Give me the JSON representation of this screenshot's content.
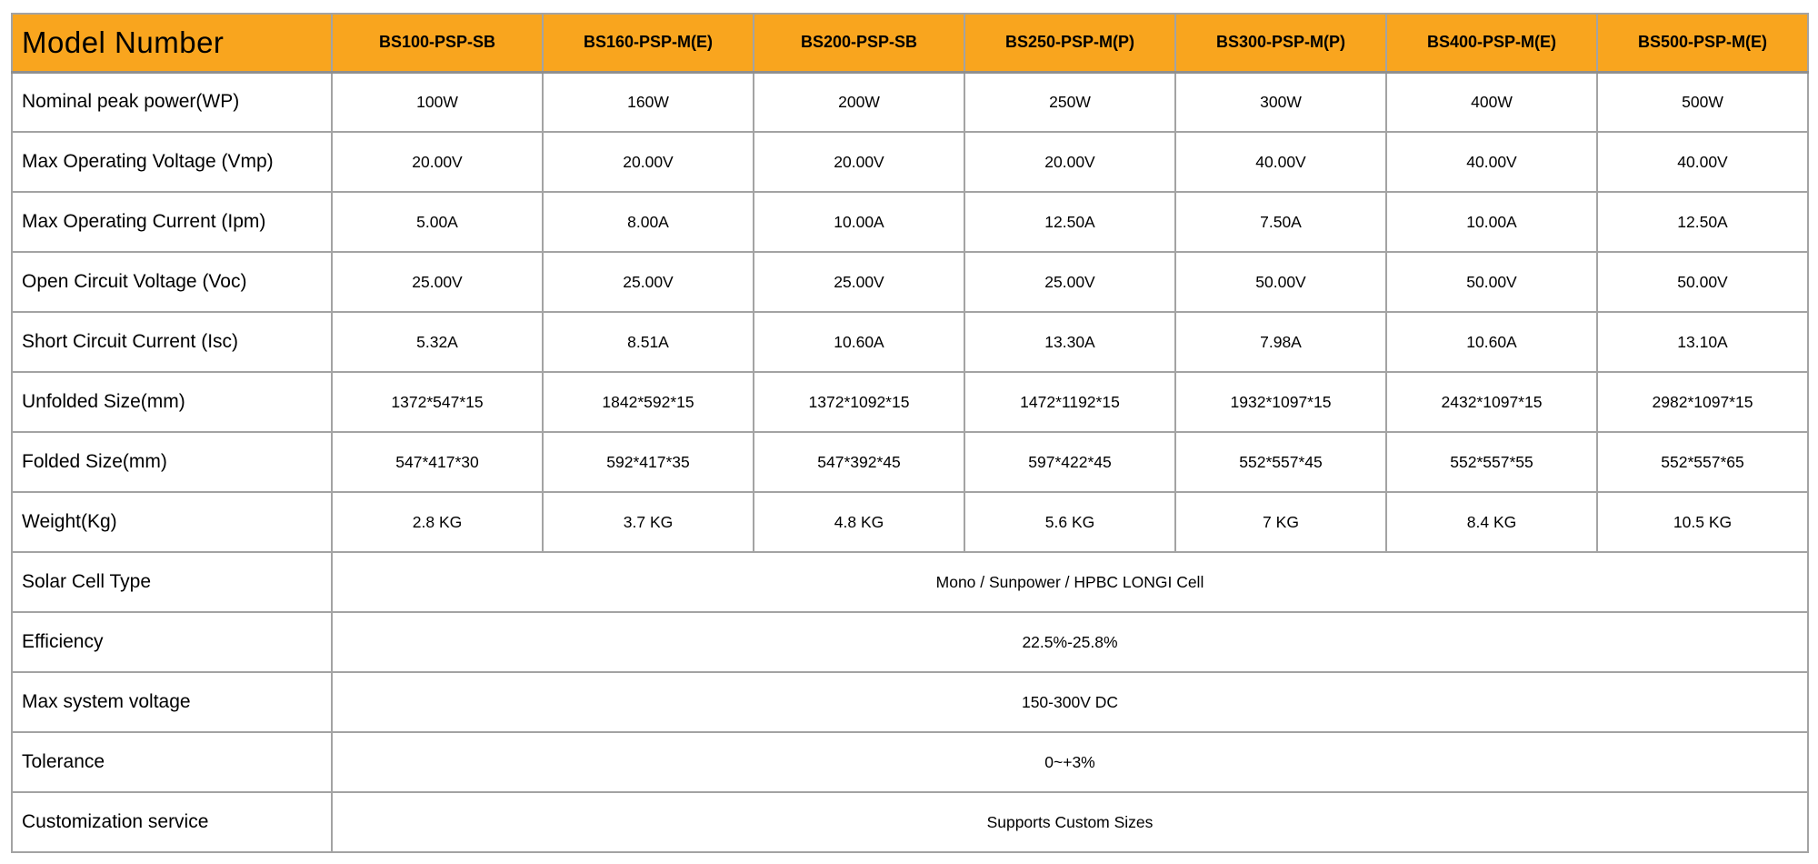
{
  "header": {
    "label": "Model Number",
    "models": [
      "BS100-PSP-SB",
      "BS160-PSP-M(E)",
      "BS200-PSP-SB",
      "BS250-PSP-M(P)",
      "BS300-PSP-M(P)",
      "BS400-PSP-M(E)",
      "BS500-PSP-M(E)"
    ]
  },
  "spec_rows": [
    {
      "label": "Nominal peak power(WP)",
      "values": [
        "100W",
        "160W",
        "200W",
        "250W",
        "300W",
        "400W",
        "500W"
      ]
    },
    {
      "label": "Max Operating Voltage (Vmp)",
      "values": [
        "20.00V",
        "20.00V",
        "20.00V",
        "20.00V",
        "40.00V",
        "40.00V",
        "40.00V"
      ]
    },
    {
      "label": "Max Operating Current (Ipm)",
      "values": [
        "5.00A",
        "8.00A",
        "10.00A",
        "12.50A",
        "7.50A",
        "10.00A",
        "12.50A"
      ]
    },
    {
      "label": "Open Circuit Voltage (Voc)",
      "values": [
        "25.00V",
        "25.00V",
        "25.00V",
        "25.00V",
        "50.00V",
        "50.00V",
        "50.00V"
      ]
    },
    {
      "label": "Short Circuit Current (Isc)",
      "values": [
        "5.32A",
        "8.51A",
        "10.60A",
        "13.30A",
        "7.98A",
        "10.60A",
        "13.10A"
      ]
    },
    {
      "label": "Unfolded Size(mm)",
      "values": [
        "1372*547*15",
        "1842*592*15",
        "1372*1092*15",
        "1472*1192*15",
        "1932*1097*15",
        "2432*1097*15",
        "2982*1097*15"
      ]
    },
    {
      "label": "Folded Size(mm)",
      "values": [
        "547*417*30",
        "592*417*35",
        "547*392*45",
        "597*422*45",
        "552*557*45",
        "552*557*55",
        "552*557*65"
      ]
    },
    {
      "label": "Weight(Kg)",
      "values": [
        "2.8 KG",
        "3.7 KG",
        "4.8 KG",
        "5.6 KG",
        "7 KG",
        "8.4 KG",
        "10.5 KG"
      ]
    }
  ],
  "merged_rows": [
    {
      "label": "Solar Cell Type",
      "value": "Mono / Sunpower / HPBC LONGI Cell"
    },
    {
      "label": "Efficiency",
      "value": "22.5%-25.8%"
    },
    {
      "label": "Max system voltage",
      "value": "150-300V DC"
    },
    {
      "label": "Tolerance",
      "value": "0~+3%"
    },
    {
      "label": "Customization service",
      "value": "Supports Custom Sizes"
    }
  ],
  "colors": {
    "header_bg": "#f9a51e",
    "border": "#a3a3a3",
    "text": "#000000"
  }
}
